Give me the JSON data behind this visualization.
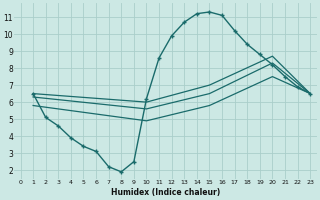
{
  "xlabel": "Humidex (Indice chaleur)",
  "bg_color": "#cce8e4",
  "grid_color": "#aaceca",
  "line_color": "#1a6b6b",
  "xlim": [
    -0.5,
    23.5
  ],
  "ylim": [
    1.5,
    11.8
  ],
  "xticks": [
    0,
    1,
    2,
    3,
    4,
    5,
    6,
    7,
    8,
    9,
    10,
    11,
    12,
    13,
    14,
    15,
    16,
    17,
    18,
    19,
    20,
    21,
    22,
    23
  ],
  "yticks": [
    2,
    3,
    4,
    5,
    6,
    7,
    8,
    9,
    10,
    11
  ],
  "curve_x": [
    1,
    2,
    3,
    4,
    5,
    6,
    7,
    8,
    9,
    10,
    11,
    12,
    13,
    14,
    15,
    16,
    17,
    18,
    19,
    20,
    21,
    22,
    23
  ],
  "curve_y": [
    6.5,
    5.1,
    4.6,
    3.9,
    3.4,
    3.1,
    2.2,
    1.9,
    2.5,
    6.2,
    8.6,
    9.9,
    10.7,
    11.2,
    11.3,
    11.1,
    10.2,
    9.4,
    8.8,
    8.2,
    7.5,
    6.9,
    6.5
  ],
  "line_a_x": [
    1,
    10,
    15,
    20,
    23
  ],
  "line_a_y": [
    6.5,
    6.0,
    7.0,
    8.7,
    6.5
  ],
  "line_b_x": [
    1,
    10,
    15,
    20,
    23
  ],
  "line_b_y": [
    6.3,
    5.6,
    6.5,
    8.3,
    6.5
  ],
  "line_c_x": [
    1,
    10,
    15,
    20,
    23
  ],
  "line_c_y": [
    5.8,
    4.9,
    5.8,
    7.5,
    6.5
  ]
}
